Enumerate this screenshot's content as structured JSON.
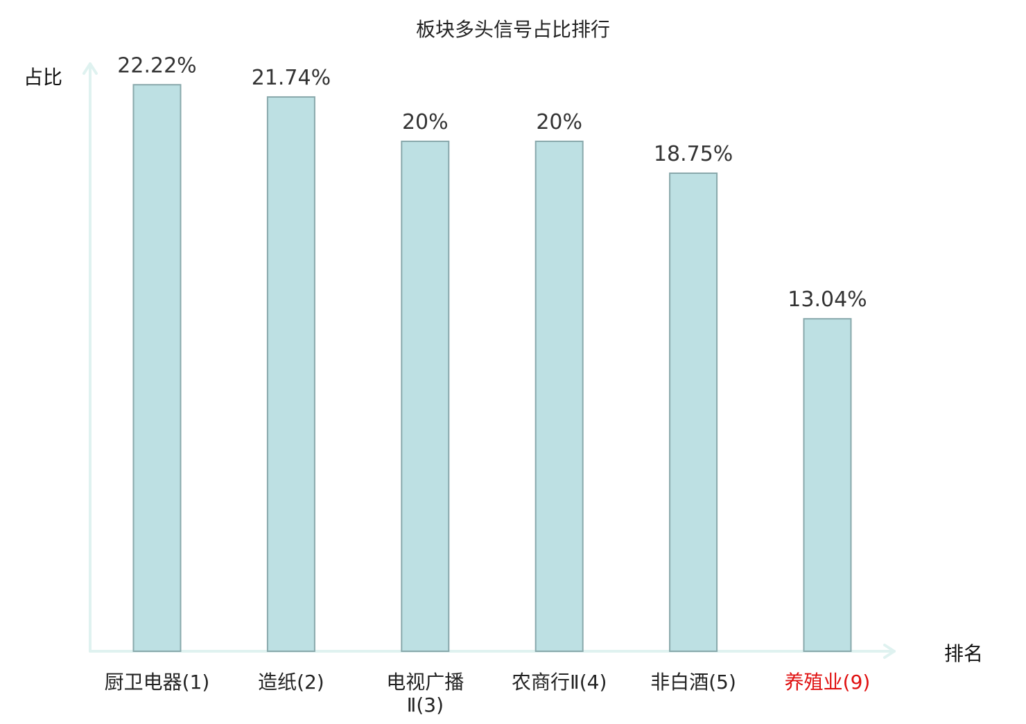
{
  "chart_data": {
    "type": "bar",
    "title": "板块多头信号占比排行",
    "ylabel": "占比",
    "xlabel": "排名",
    "ylim": [
      0,
      25
    ],
    "categories": [
      [
        "厨卫电器(1)"
      ],
      [
        "造纸(2)"
      ],
      [
        "电视广播",
        "Ⅱ(3)"
      ],
      [
        "农商行Ⅱ(4)"
      ],
      [
        "非白酒(5)"
      ],
      [
        "养殖业(9)"
      ]
    ],
    "values": [
      22.22,
      21.74,
      20,
      20,
      18.75,
      13.04
    ],
    "value_labels": [
      "22.22%",
      "21.74%",
      "20%",
      "20%",
      "18.75%",
      "13.04%"
    ],
    "highlight_index": 5,
    "grid": false,
    "legend": "none",
    "colors": {
      "bar_fill": "#bde0e3",
      "bar_stroke": "#88a8ab",
      "axis": "#dff2f0",
      "category_text": "#222222",
      "highlight_text": "#e01010"
    }
  }
}
